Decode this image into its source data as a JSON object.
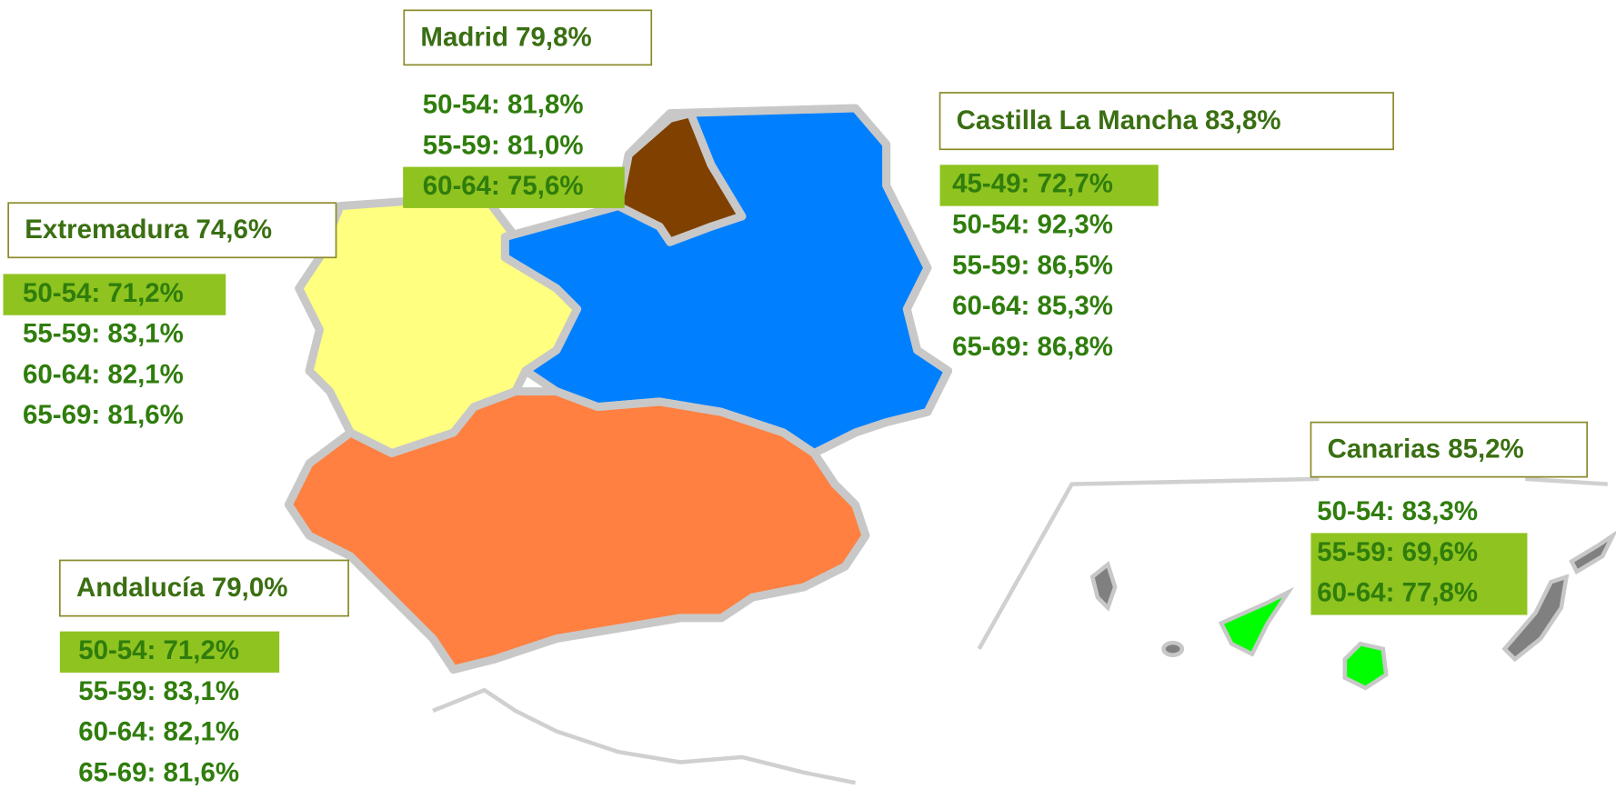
{
  "regions": [
    {
      "name": "Madrid 79,8%",
      "rows": [
        {
          "text": "50-54: 81,8%",
          "highlighted": false
        },
        {
          "text": "55-59: 81,0%",
          "highlighted": false
        },
        {
          "text": "60-64: 75,6%",
          "highlighted": true
        }
      ]
    },
    {
      "name": "Castilla La Mancha 83,8%",
      "rows": [
        {
          "text": "45-49: 72,7%",
          "highlighted": true
        },
        {
          "text": "50-54: 92,3%",
          "highlighted": false
        },
        {
          "text": "55-59: 86,5%",
          "highlighted": false
        },
        {
          "text": "60-64: 85,3%",
          "highlighted": false
        },
        {
          "text": "65-69: 86,8%",
          "highlighted": false
        }
      ]
    },
    {
      "name": "Extremadura 74,6%",
      "rows": [
        {
          "text": "50-54: 71,2%",
          "highlighted": true
        },
        {
          "text": "55-59: 83,1%",
          "highlighted": false
        },
        {
          "text": "60-64: 82,1%",
          "highlighted": false
        },
        {
          "text": "65-69: 81,6%",
          "highlighted": false
        }
      ]
    },
    {
      "name": "Andalucía 79,0%",
      "rows": [
        {
          "text": "50-54: 71,2%",
          "highlighted": true
        },
        {
          "text": "55-59: 83,1%",
          "highlighted": false
        },
        {
          "text": "60-64: 82,1%",
          "highlighted": false
        },
        {
          "text": "65-69: 81,6%",
          "highlighted": false
        }
      ]
    },
    {
      "name": "Canarias 85,2%",
      "rows": [
        {
          "text": "50-54: 83,3%",
          "highlighted": false
        },
        {
          "text": "55-59: 69,6%",
          "highlighted": true
        },
        {
          "text": "60-64: 77,8%",
          "highlighted": true
        }
      ]
    }
  ]
}
